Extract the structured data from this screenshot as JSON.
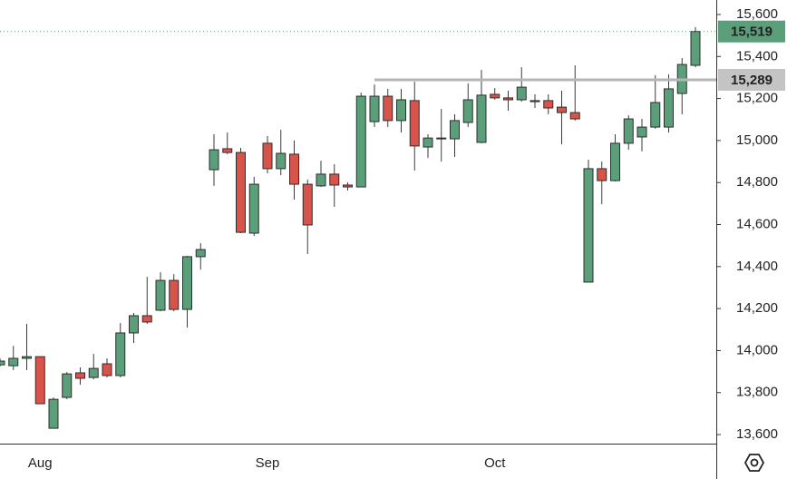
{
  "chart_data": {
    "type": "candlestick",
    "categories": [
      null,
      null,
      null,
      "Aug",
      null,
      null,
      null,
      null,
      null,
      null,
      null,
      null,
      null,
      null,
      null,
      null,
      null,
      null,
      null,
      null,
      "Sep",
      null,
      null,
      null,
      null,
      null,
      null,
      null,
      null,
      null,
      null,
      null,
      null,
      null,
      null,
      null,
      null,
      "Oct",
      null,
      null,
      null,
      null,
      null,
      null,
      null,
      null,
      null,
      null,
      null,
      null,
      null,
      null,
      null
    ],
    "open": [
      13932,
      13928,
      13963,
      13971,
      13630,
      13777,
      13894,
      13872,
      13937,
      13881,
      14084,
      14166,
      14192,
      14334,
      14196,
      14447,
      14861,
      14961,
      14943,
      14559,
      14987,
      14866,
      14935,
      14792,
      14784,
      14840,
      14788,
      14779,
      15090,
      15211,
      15095,
      15190,
      14969,
      15008,
      15008,
      15086,
      14991,
      15220,
      15203,
      15194,
      15185,
      15190,
      15159,
      15133,
      14326,
      14866,
      14809,
      14987,
      15017,
      15064,
      15064,
      15224,
      15358
    ],
    "high": [
      13963,
      14023,
      14127,
      13971,
      13777,
      13898,
      13920,
      13984,
      13963,
      14131,
      14179,
      14351,
      14373,
      14364,
      14451,
      14511,
      15030,
      15038,
      14965,
      14827,
      15021,
      15051,
      15000,
      14814,
      14904,
      14887,
      14801,
      15228,
      15267,
      15246,
      15246,
      15280,
      15030,
      15151,
      15125,
      15272,
      15336,
      15250,
      15237,
      15349,
      15220,
      15220,
      15237,
      15358,
      14909,
      14900,
      15030,
      15120,
      15103,
      15311,
      15315,
      15393,
      15540
    ],
    "low": [
      13924,
      13907,
      13907,
      13747,
      13630,
      13768,
      13837,
      13863,
      13872,
      13872,
      14036,
      14127,
      14187,
      14187,
      14110,
      14386,
      14784,
      14935,
      14559,
      14546,
      14844,
      14835,
      14719,
      14460,
      14779,
      14684,
      14762,
      14779,
      15064,
      15064,
      15038,
      14857,
      14917,
      14900,
      14922,
      15064,
      14987,
      15194,
      15142,
      15185,
      15155,
      15125,
      14982,
      15095,
      14326,
      14697,
      14805,
      14956,
      14948,
      15056,
      15038,
      15125,
      15349
    ],
    "close": [
      13950,
      13963,
      13971,
      13747,
      13768,
      13889,
      13868,
      13915,
      13881,
      14084,
      14166,
      14136,
      14334,
      14196,
      14447,
      14481,
      14956,
      14943,
      14563,
      14792,
      14866,
      14939,
      14792,
      14598,
      14840,
      14788,
      14779,
      15211,
      15211,
      15095,
      15194,
      14974,
      15012,
      15012,
      15095,
      15194,
      15216,
      15203,
      15194,
      15254,
      15190,
      15155,
      15133,
      15103,
      14866,
      14809,
      14987,
      15103,
      15064,
      15181,
      15246,
      15362,
      15519
    ],
    "up_color": "#5a9e7a",
    "down_color": "#d9534a",
    "ylim": [
      13557,
      15669
    ],
    "yticks": [
      {
        "value": 13600,
        "label": "13,600"
      },
      {
        "value": 13800,
        "label": "13,800"
      },
      {
        "value": 14000,
        "label": "14,000"
      },
      {
        "value": 14200,
        "label": "14,200"
      },
      {
        "value": 14400,
        "label": "14,400"
      },
      {
        "value": 14600,
        "label": "14,600"
      },
      {
        "value": 14800,
        "label": "14,800"
      },
      {
        "value": 15000,
        "label": "15,000"
      },
      {
        "value": 15200,
        "label": "15,200"
      },
      {
        "value": 15400,
        "label": "15,400"
      },
      {
        "value": 15600,
        "label": "15,600"
      }
    ],
    "last_price": {
      "value": 15519,
      "label": "15,519"
    },
    "level": {
      "value": 15289,
      "label": "15,289",
      "start_index": 28
    }
  }
}
